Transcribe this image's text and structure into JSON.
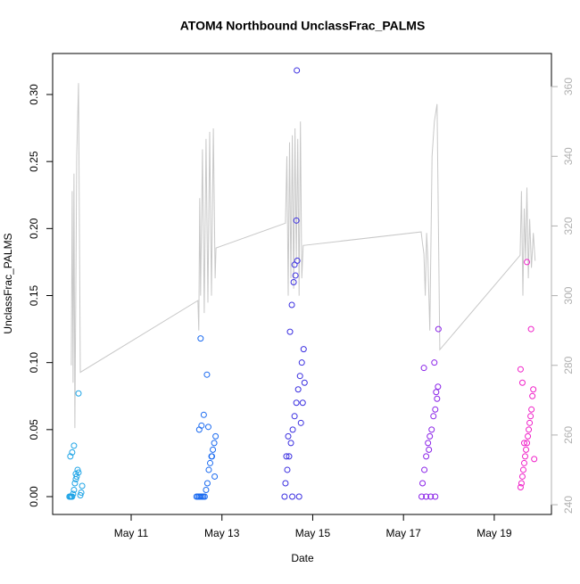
{
  "chart_data": {
    "type": "scatter",
    "title": "ATOM4 Northbound UnclassFrac_PALMS",
    "x_label": "Date",
    "y_label": "UnclassFrac_PALMS",
    "xlim": [
      9.27,
      20.26
    ],
    "ylim": [
      -0.0133,
      0.3306
    ],
    "y2lim": [
      237.2,
      369.5
    ],
    "xticks": [
      {
        "value": 11,
        "label": "May 11"
      },
      {
        "value": 13,
        "label": "May 13"
      },
      {
        "value": 15,
        "label": "May 15"
      },
      {
        "value": 17,
        "label": "May 17"
      },
      {
        "value": 19,
        "label": "May 19"
      }
    ],
    "yticks": [
      {
        "value": 0,
        "label": "0.00"
      },
      {
        "value": 0.05,
        "label": "0.05"
      },
      {
        "value": 0.1,
        "label": "0.10"
      },
      {
        "value": 0.15,
        "label": "0.15"
      },
      {
        "value": 0.2,
        "label": "0.20"
      },
      {
        "value": 0.25,
        "label": "0.25"
      },
      {
        "value": 0.3,
        "label": "0.30"
      }
    ],
    "y2ticks": [
      240,
      260,
      280,
      300,
      320,
      340,
      360
    ],
    "series": [
      {
        "color": "#1ea4e6",
        "x": [
          9.64,
          9.66,
          9.68,
          9.7,
          9.72,
          9.74,
          9.76,
          9.78,
          9.8,
          9.82,
          9.84,
          9.66,
          9.7,
          9.74,
          9.78,
          9.84,
          9.88,
          9.9,
          9.92
        ],
        "y": [
          0,
          0,
          0,
          0,
          0.002,
          0.005,
          0.01,
          0.013,
          0.015,
          0.02,
          0.018,
          0.03,
          0.033,
          0.038,
          0.017,
          0.077,
          0.001,
          0.003,
          0.008
        ]
      },
      {
        "color": "#1a6af0",
        "x": [
          12.44,
          12.47,
          12.5,
          12.53,
          12.56,
          12.59,
          12.62,
          12.65,
          12.68,
          12.71,
          12.74,
          12.77,
          12.8,
          12.83,
          12.86,
          12.5,
          12.55,
          12.6,
          12.67,
          12.53,
          12.7,
          12.78,
          12.84
        ],
        "y": [
          0,
          0,
          0,
          0,
          0,
          0,
          0,
          0.005,
          0.01,
          0.02,
          0.025,
          0.03,
          0.035,
          0.04,
          0.045,
          0.05,
          0.053,
          0.061,
          0.091,
          0.118,
          0.052,
          0.03,
          0.015
        ]
      },
      {
        "color": "#3a2ee0",
        "x": [
          14.38,
          14.55,
          14.7,
          14.4,
          14.44,
          14.48,
          14.52,
          14.56,
          14.6,
          14.64,
          14.68,
          14.72,
          14.76,
          14.8,
          14.5,
          14.54,
          14.58,
          14.62,
          14.66,
          14.6,
          14.64,
          14.65,
          14.42,
          14.46,
          14.74,
          14.78,
          14.82
        ],
        "y": [
          0,
          0,
          0,
          0.01,
          0.02,
          0.03,
          0.04,
          0.05,
          0.06,
          0.07,
          0.08,
          0.09,
          0.1,
          0.11,
          0.123,
          0.143,
          0.16,
          0.165,
          0.176,
          0.173,
          0.206,
          0.318,
          0.03,
          0.045,
          0.055,
          0.07,
          0.085
        ]
      },
      {
        "color": "#8a22e8",
        "x": [
          17.4,
          17.5,
          17.6,
          17.7,
          17.42,
          17.46,
          17.5,
          17.54,
          17.58,
          17.62,
          17.66,
          17.7,
          17.74,
          17.45,
          17.68,
          17.77,
          17.76,
          17.72,
          17.56
        ],
        "y": [
          0,
          0,
          0,
          0,
          0.01,
          0.02,
          0.03,
          0.04,
          0.045,
          0.05,
          0.06,
          0.065,
          0.073,
          0.096,
          0.1,
          0.125,
          0.082,
          0.078,
          0.035
        ]
      },
      {
        "color": "#f020c8",
        "x": [
          19.58,
          19.6,
          19.62,
          19.64,
          19.66,
          19.68,
          19.7,
          19.72,
          19.74,
          19.76,
          19.78,
          19.8,
          19.82,
          19.84,
          19.86,
          19.62,
          19.58,
          19.81,
          19.72,
          19.88,
          19.66
        ],
        "y": [
          0.007,
          0.01,
          0.015,
          0.02,
          0.025,
          0.03,
          0.035,
          0.04,
          0.045,
          0.05,
          0.055,
          0.06,
          0.065,
          0.075,
          0.08,
          0.085,
          0.095,
          0.125,
          0.175,
          0.028,
          0.04
        ]
      }
    ],
    "line": {
      "color": "#c8c8c8",
      "axis": "y2",
      "x": [
        9.68,
        9.7,
        9.72,
        9.74,
        9.76,
        9.8,
        9.84,
        9.88,
        12.47,
        12.49,
        12.51,
        12.53,
        12.57,
        12.61,
        12.65,
        12.69,
        12.73,
        12.77,
        12.81,
        12.85,
        12.87,
        14.4,
        14.43,
        14.46,
        14.49,
        14.52,
        14.55,
        14.58,
        14.61,
        14.64,
        14.67,
        14.7,
        14.73,
        14.76,
        14.79,
        17.39,
        17.42,
        17.45,
        17.48,
        17.51,
        17.54,
        17.58,
        17.63,
        17.68,
        17.74,
        17.8,
        19.57,
        19.6,
        19.63,
        19.66,
        19.69,
        19.72,
        19.75,
        19.78,
        19.82,
        19.86,
        19.9
      ],
      "y": [
        280,
        330,
        275,
        335,
        262,
        340,
        361,
        278,
        298.6,
        290,
        328,
        300,
        342,
        295,
        345,
        298,
        347,
        300,
        348,
        305,
        313.7,
        320.8,
        340,
        300,
        344,
        305,
        346,
        302,
        348,
        310,
        345,
        300,
        350,
        305,
        314.4,
        318.3,
        315,
        312,
        300,
        318,
        310,
        290,
        340,
        350,
        355,
        284.5,
        311.6,
        330,
        300,
        325,
        310,
        331,
        305,
        322,
        308,
        318,
        310
      ]
    }
  }
}
